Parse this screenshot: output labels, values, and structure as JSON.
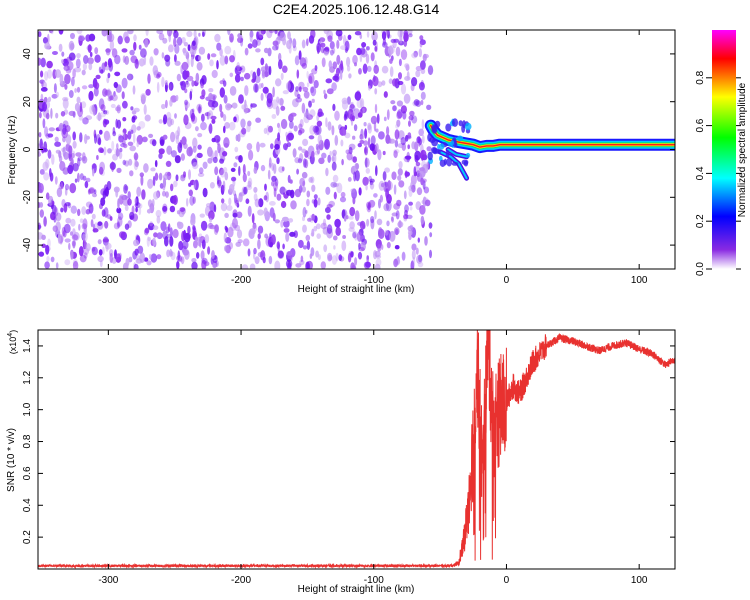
{
  "figure": {
    "title": "C2E4.2025.106.12.48.G14"
  },
  "chart_data": [
    {
      "type": "heatmap",
      "name": "spectrogram",
      "xlabel": "Height of straight line (km)",
      "ylabel": "Frequency (Hz)",
      "xlim": [
        -353,
        127
      ],
      "ylim": [
        -50,
        50
      ],
      "xticks": [
        -300,
        -200,
        -100,
        0,
        100
      ],
      "yticks": [
        -40,
        -20,
        0,
        20,
        40
      ],
      "colorbar": {
        "label": "Normalized spectral amplitude",
        "range": [
          0,
          1
        ],
        "ticks": [
          "0.0",
          "0.2",
          "0.4",
          "0.6",
          "0.8"
        ],
        "colors": [
          "#ffffff",
          "#8a2be2",
          "#0000ff",
          "#00ffff",
          "#00ff00",
          "#ffff00",
          "#ff0000",
          "#ff00ff"
        ]
      },
      "noise_region": {
        "x_from": -353,
        "x_to": -57,
        "dominant_color": "#8b2cf0"
      },
      "signal_trace": [
        {
          "x": -57,
          "y": 10
        },
        {
          "x": -55,
          "y": 8
        },
        {
          "x": -52,
          "y": 6
        },
        {
          "x": -48,
          "y": 5
        },
        {
          "x": -44,
          "y": 4
        },
        {
          "x": -40,
          "y": 3.5
        },
        {
          "x": -35,
          "y": 3
        },
        {
          "x": -30,
          "y": 2.5
        },
        {
          "x": -25,
          "y": 2
        },
        {
          "x": -20,
          "y": 1
        },
        {
          "x": -15,
          "y": 1.5
        },
        {
          "x": -10,
          "y": 1.5
        },
        {
          "x": -5,
          "y": 2
        },
        {
          "x": 0,
          "y": 2
        },
        {
          "x": 10,
          "y": 2
        },
        {
          "x": 30,
          "y": 2
        },
        {
          "x": 60,
          "y": 2
        },
        {
          "x": 90,
          "y": 2
        },
        {
          "x": 110,
          "y": 2
        },
        {
          "x": 127,
          "y": 2
        }
      ],
      "tail_branches": [
        [
          {
            "x": -50,
            "y": -1
          },
          {
            "x": -42,
            "y": -3
          },
          {
            "x": -36,
            "y": -6
          },
          {
            "x": -30,
            "y": -12
          }
        ],
        [
          {
            "x": -44,
            "y": 0
          },
          {
            "x": -38,
            "y": -2
          },
          {
            "x": -30,
            "y": -3
          }
        ]
      ]
    },
    {
      "type": "line",
      "name": "snr",
      "xlabel": "Height of straight line (km)",
      "ylabel": "SNR (10 * v/v)",
      "y_multiplier": "(x10",
      "y_multiplier_exp": "4",
      "multiplier_close": ")",
      "xlim": [
        -353,
        127
      ],
      "ylim": [
        0,
        1.5
      ],
      "xticks": [
        -300,
        -200,
        -100,
        0,
        100
      ],
      "yticks": [
        "0.2",
        "0.4",
        "0.6",
        "0.8",
        "1.0",
        "1.2",
        "1.4"
      ],
      "line_color": "#e8312f",
      "series": [
        {
          "points": [
            {
              "x": -353,
              "y": 0.02
            },
            {
              "x": -40,
              "y": 0.02
            },
            {
              "x": -35,
              "y": 0.05
            },
            {
              "x": -30,
              "y": 0.3
            },
            {
              "x": -25,
              "y": 0.8
            },
            {
              "x": -22,
              "y": 1.3
            },
            {
              "x": -18,
              "y": 0.6
            },
            {
              "x": -14,
              "y": 1.45
            },
            {
              "x": -10,
              "y": 0.9
            },
            {
              "x": -5,
              "y": 1.0
            },
            {
              "x": 0,
              "y": 1.05
            },
            {
              "x": 5,
              "y": 1.15
            },
            {
              "x": 10,
              "y": 1.1
            },
            {
              "x": 15,
              "y": 1.2
            },
            {
              "x": 20,
              "y": 1.3
            },
            {
              "x": 30,
              "y": 1.4
            },
            {
              "x": 40,
              "y": 1.45
            },
            {
              "x": 50,
              "y": 1.43
            },
            {
              "x": 60,
              "y": 1.4
            },
            {
              "x": 70,
              "y": 1.37
            },
            {
              "x": 80,
              "y": 1.4
            },
            {
              "x": 90,
              "y": 1.42
            },
            {
              "x": 100,
              "y": 1.38
            },
            {
              "x": 110,
              "y": 1.35
            },
            {
              "x": 120,
              "y": 1.28
            },
            {
              "x": 127,
              "y": 1.32
            }
          ]
        }
      ]
    }
  ]
}
